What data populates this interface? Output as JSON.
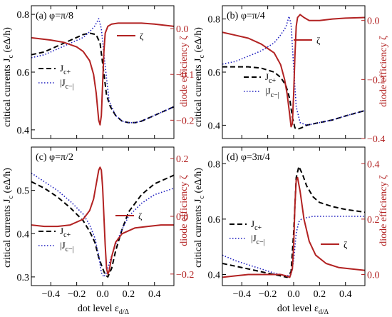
{
  "figure": {
    "xlabel": "dot level ε_d/Δ",
    "ylabel_left": "critical currents J_c (eΔ/h)",
    "ylabel_right": "diode efficiency ζ"
  },
  "colors": {
    "jc_plus": "#000000",
    "jc_minus": "#1f1fbf",
    "zeta": "#b22222"
  },
  "chart_data": [
    {
      "type": "line",
      "panel": "a",
      "title": "(a) φ=π/8",
      "xlim": [
        -0.55,
        0.55
      ],
      "ylim_left": [
        0.37,
        0.83
      ],
      "ylim_right": [
        -0.24,
        0.05
      ],
      "xticks": [
        -0.4,
        -0.2,
        0.0,
        0.2,
        0.4
      ],
      "yticks_left": [
        0.4,
        0.6,
        0.8
      ],
      "yticks_right": [
        -0.2,
        -0.1,
        0.0
      ],
      "legend": [
        "J_c+",
        "|J_c−|",
        "ζ"
      ],
      "series": [
        {
          "name": "J_c+",
          "axis": "left",
          "style": "dashed",
          "color": "#000000",
          "x": [
            -0.55,
            -0.45,
            -0.35,
            -0.25,
            -0.15,
            -0.1,
            -0.05,
            -0.02,
            0.0,
            0.03,
            0.06,
            0.1,
            0.15,
            0.2,
            0.25,
            0.3,
            0.35,
            0.45,
            0.55
          ],
          "y": [
            0.66,
            0.67,
            0.69,
            0.71,
            0.73,
            0.735,
            0.73,
            0.7,
            0.63,
            0.52,
            0.48,
            0.45,
            0.43,
            0.425,
            0.425,
            0.43,
            0.44,
            0.46,
            0.48
          ]
        },
        {
          "name": "|J_c−|",
          "axis": "left",
          "style": "dotted",
          "color": "#1f1fbf",
          "x": [
            -0.55,
            -0.45,
            -0.35,
            -0.25,
            -0.15,
            -0.1,
            -0.06,
            -0.03,
            -0.01,
            0.02,
            0.05,
            0.1,
            0.15,
            0.2,
            0.25,
            0.3,
            0.35,
            0.45,
            0.55
          ],
          "y": [
            0.65,
            0.66,
            0.68,
            0.7,
            0.72,
            0.74,
            0.76,
            0.785,
            0.75,
            0.62,
            0.5,
            0.45,
            0.43,
            0.425,
            0.425,
            0.43,
            0.44,
            0.46,
            0.48
          ]
        },
        {
          "name": "ζ",
          "axis": "right",
          "style": "solid",
          "color": "#b22222",
          "x": [
            -0.55,
            -0.4,
            -0.3,
            -0.2,
            -0.15,
            -0.1,
            -0.07,
            -0.05,
            -0.04,
            -0.03,
            -0.02,
            -0.01,
            0.0,
            0.01,
            0.02,
            0.04,
            0.07,
            0.12,
            0.2,
            0.3,
            0.4,
            0.55
          ],
          "y": [
            -0.02,
            -0.025,
            -0.03,
            -0.04,
            -0.05,
            -0.07,
            -0.1,
            -0.14,
            -0.17,
            -0.2,
            -0.21,
            -0.19,
            -0.12,
            -0.05,
            -0.01,
            0.005,
            0.01,
            0.012,
            0.012,
            0.012,
            0.01,
            0.005
          ]
        }
      ]
    },
    {
      "type": "line",
      "panel": "b",
      "title": "(b) φ=π/4",
      "xlim": [
        -0.55,
        0.55
      ],
      "ylim_left": [
        0.35,
        0.85
      ],
      "ylim_right": [
        -0.4,
        0.05
      ],
      "xticks": [
        -0.4,
        -0.2,
        0.0,
        0.2,
        0.4
      ],
      "yticks_left": [
        0.4,
        0.6,
        0.8
      ],
      "yticks_right": [
        -0.4,
        -0.2,
        0.0
      ],
      "legend": [
        "ζ",
        "J_c+",
        "|J_c−|"
      ],
      "series": [
        {
          "name": "J_c+",
          "axis": "left",
          "style": "dashed",
          "color": "#000000",
          "x": [
            -0.55,
            -0.45,
            -0.35,
            -0.25,
            -0.15,
            -0.1,
            -0.06,
            -0.03,
            -0.01,
            0.01,
            0.03,
            0.06,
            0.1,
            0.15,
            0.2,
            0.3,
            0.4,
            0.55
          ],
          "y": [
            0.62,
            0.62,
            0.62,
            0.615,
            0.6,
            0.58,
            0.55,
            0.5,
            0.43,
            0.39,
            0.385,
            0.39,
            0.4,
            0.405,
            0.41,
            0.42,
            0.435,
            0.455
          ]
        },
        {
          "name": "|J_c−|",
          "axis": "left",
          "style": "dotted",
          "color": "#1f1fbf",
          "x": [
            -0.55,
            -0.45,
            -0.35,
            -0.25,
            -0.15,
            -0.1,
            -0.06,
            -0.035,
            -0.02,
            0.0,
            0.02,
            0.05,
            0.1,
            0.15,
            0.2,
            0.3,
            0.4,
            0.55
          ],
          "y": [
            0.63,
            0.64,
            0.66,
            0.68,
            0.71,
            0.74,
            0.77,
            0.81,
            0.78,
            0.62,
            0.47,
            0.41,
            0.4,
            0.405,
            0.41,
            0.42,
            0.435,
            0.455
          ]
        },
        {
          "name": "ζ",
          "axis": "right",
          "style": "solid",
          "color": "#b22222",
          "x": [
            -0.55,
            -0.45,
            -0.35,
            -0.25,
            -0.15,
            -0.1,
            -0.07,
            -0.05,
            -0.03,
            -0.02,
            -0.01,
            0.0,
            0.01,
            0.02,
            0.03,
            0.05,
            0.08,
            0.12,
            0.2,
            0.3,
            0.4,
            0.55
          ],
          "y": [
            -0.04,
            -0.05,
            -0.06,
            -0.08,
            -0.11,
            -0.15,
            -0.2,
            -0.25,
            -0.32,
            -0.36,
            -0.35,
            -0.25,
            -0.12,
            -0.02,
            0.01,
            0.02,
            0.01,
            0.0,
            0.0,
            0.005,
            0.008,
            0.01
          ]
        }
      ]
    },
    {
      "type": "line",
      "panel": "c",
      "title": "(c) φ=π/2",
      "xlim": [
        -0.55,
        0.55
      ],
      "ylim_left": [
        0.28,
        0.6
      ],
      "ylim_right": [
        -0.24,
        0.24
      ],
      "xticks": [
        -0.4,
        -0.2,
        0.0,
        0.2,
        0.4
      ],
      "yticks_left": [
        0.3,
        0.4,
        0.5
      ],
      "yticks_right": [
        -0.2,
        0.0,
        0.2
      ],
      "legend": [
        "ζ",
        "J_c+",
        "|J_c−|"
      ],
      "series": [
        {
          "name": "J_c+",
          "axis": "left",
          "style": "dashed",
          "color": "#000000",
          "x": [
            -0.55,
            -0.45,
            -0.35,
            -0.25,
            -0.15,
            -0.1,
            -0.06,
            -0.03,
            0.0,
            0.02,
            0.04,
            0.07,
            0.1,
            0.15,
            0.2,
            0.3,
            0.4,
            0.55
          ],
          "y": [
            0.52,
            0.505,
            0.485,
            0.46,
            0.43,
            0.405,
            0.38,
            0.345,
            0.32,
            0.305,
            0.3,
            0.32,
            0.36,
            0.41,
            0.45,
            0.49,
            0.515,
            0.535
          ]
        },
        {
          "name": "|J_c−|",
          "axis": "left",
          "style": "dotted",
          "color": "#1f1fbf",
          "x": [
            -0.55,
            -0.45,
            -0.35,
            -0.25,
            -0.15,
            -0.1,
            -0.06,
            -0.03,
            -0.01,
            0.01,
            0.03,
            0.06,
            0.1,
            0.15,
            0.2,
            0.3,
            0.4,
            0.55
          ],
          "y": [
            0.54,
            0.52,
            0.5,
            0.475,
            0.445,
            0.42,
            0.39,
            0.35,
            0.31,
            0.3,
            0.31,
            0.34,
            0.375,
            0.41,
            0.44,
            0.47,
            0.49,
            0.505
          ]
        },
        {
          "name": "ζ",
          "axis": "right",
          "style": "solid",
          "color": "#b22222",
          "x": [
            -0.55,
            -0.45,
            -0.35,
            -0.25,
            -0.15,
            -0.1,
            -0.07,
            -0.05,
            -0.03,
            -0.02,
            -0.01,
            0.0,
            0.01,
            0.02,
            0.03,
            0.04,
            0.05,
            0.07,
            0.1,
            0.15,
            0.25,
            0.35,
            0.45,
            0.55
          ],
          "y": [
            -0.03,
            -0.035,
            -0.035,
            -0.03,
            -0.01,
            0.02,
            0.06,
            0.11,
            0.16,
            0.17,
            0.16,
            0.1,
            0.0,
            -0.1,
            -0.18,
            -0.2,
            -0.19,
            -0.14,
            -0.09,
            -0.06,
            -0.04,
            -0.035,
            -0.03,
            -0.03
          ]
        }
      ]
    },
    {
      "type": "line",
      "panel": "d",
      "title": "(d) φ=3π/4",
      "xlim": [
        -0.55,
        0.55
      ],
      "ylim_left": [
        0.36,
        0.86
      ],
      "ylim_right": [
        -0.04,
        0.46
      ],
      "xticks": [
        -0.4,
        -0.2,
        0.0,
        0.2,
        0.4
      ],
      "yticks_left": [
        0.4,
        0.6,
        0.8
      ],
      "yticks_right": [
        0.0,
        0.2,
        0.4
      ],
      "legend": [
        "J_c+",
        "|J_c−|",
        "ζ"
      ],
      "series": [
        {
          "name": "J_c+",
          "axis": "left",
          "style": "dashed",
          "color": "#000000",
          "x": [
            -0.55,
            -0.45,
            -0.35,
            -0.25,
            -0.15,
            -0.1,
            -0.05,
            -0.02,
            0.0,
            0.02,
            0.04,
            0.07,
            0.1,
            0.15,
            0.2,
            0.3,
            0.4,
            0.55
          ],
          "y": [
            0.44,
            0.43,
            0.42,
            0.41,
            0.4,
            0.395,
            0.39,
            0.41,
            0.55,
            0.75,
            0.79,
            0.76,
            0.72,
            0.68,
            0.66,
            0.645,
            0.635,
            0.625
          ]
        },
        {
          "name": "|J_c−|",
          "axis": "left",
          "style": "dotted",
          "color": "#1f1fbf",
          "x": [
            -0.55,
            -0.45,
            -0.35,
            -0.25,
            -0.15,
            -0.1,
            -0.05,
            -0.02,
            0.0,
            0.02,
            0.04,
            0.06,
            0.1,
            0.15,
            0.2,
            0.3,
            0.4,
            0.55
          ],
          "y": [
            0.47,
            0.45,
            0.435,
            0.42,
            0.405,
            0.4,
            0.395,
            0.4,
            0.45,
            0.55,
            0.59,
            0.6,
            0.605,
            0.61,
            0.61,
            0.61,
            0.61,
            0.61
          ]
        },
        {
          "name": "ζ",
          "axis": "right",
          "style": "solid",
          "color": "#b22222",
          "x": [
            -0.55,
            -0.45,
            -0.35,
            -0.25,
            -0.15,
            -0.1,
            -0.06,
            -0.03,
            -0.01,
            0.0,
            0.01,
            0.02,
            0.03,
            0.05,
            0.08,
            0.12,
            0.17,
            0.25,
            0.35,
            0.45,
            0.55
          ],
          "y": [
            -0.01,
            -0.005,
            0.0,
            0.0,
            0.0,
            0.0,
            -0.005,
            -0.01,
            0.02,
            0.1,
            0.25,
            0.34,
            0.35,
            0.3,
            0.2,
            0.12,
            0.07,
            0.04,
            0.025,
            0.02,
            0.015
          ]
        }
      ]
    }
  ]
}
